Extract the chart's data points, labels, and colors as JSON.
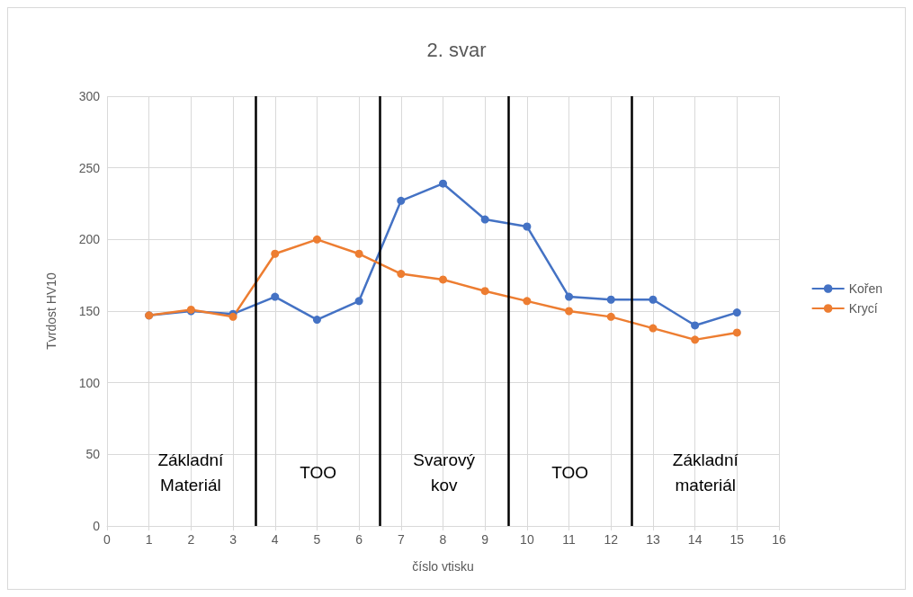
{
  "chart_data": {
    "type": "line",
    "title": "2. svar",
    "xlabel": "číslo vtisku",
    "ylabel": "Tvrdost HV10",
    "x": [
      1,
      2,
      3,
      4,
      5,
      6,
      7,
      8,
      9,
      10,
      11,
      12,
      13,
      14,
      15
    ],
    "series": [
      {
        "name": "Kořen",
        "color": "#4472c4",
        "values": [
          147,
          150,
          148,
          160,
          144,
          157,
          227,
          239,
          214,
          209,
          160,
          158,
          158,
          140,
          149
        ]
      },
      {
        "name": "Krycí",
        "color": "#ed7d31",
        "values": [
          147,
          151,
          146,
          190,
          200,
          190,
          176,
          172,
          164,
          157,
          150,
          146,
          138,
          130,
          135
        ]
      }
    ],
    "xlim": [
      0,
      16
    ],
    "xticks": [
      0,
      1,
      2,
      3,
      4,
      5,
      6,
      7,
      8,
      9,
      10,
      11,
      12,
      13,
      14,
      15,
      16
    ],
    "ylim": [
      0,
      300
    ],
    "yticks": [
      0,
      50,
      100,
      150,
      200,
      250,
      300
    ],
    "ref_lines": [
      {
        "axis": "x",
        "value": 3.55,
        "color": "#000000",
        "line_style": "solid"
      },
      {
        "axis": "x",
        "value": 6.5,
        "color": "#000000",
        "line_style": "solid"
      },
      {
        "axis": "x",
        "value": 9.55,
        "color": "#000000",
        "line_style": "solid"
      },
      {
        "axis": "x",
        "value": 12.5,
        "color": "#000000",
        "line_style": "solid"
      }
    ],
    "annotations": [
      "Základní\nMateriál",
      "TOO",
      "Svarový\nkov",
      "TOO",
      "Základní\nmateriál"
    ],
    "grid": true,
    "legend": "right",
    "marker": "circle",
    "line_style": "solid"
  }
}
